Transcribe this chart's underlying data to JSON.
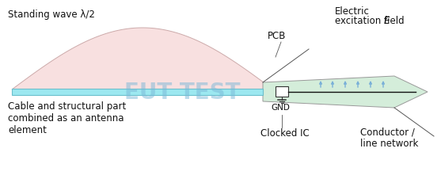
{
  "bg_color": "#ffffff",
  "label_standing_wave": "Standing wave λ/2",
  "label_electric_line1": "Electric",
  "label_electric_line2": "excitation field ",
  "label_electric_E": "E",
  "label_cable": "Cable and structural part\ncombined as an antenna\nelement",
  "label_pcb": "PCB",
  "label_gnd": "GND",
  "label_clocked_ic": "Clocked IC",
  "label_conductor": "Conductor /\nline network",
  "label_eut_test": "EUT TEST",
  "cable_color": "#9ce8f0",
  "cable_border_color": "#6bbfcc",
  "pcb_fill_color": "#d4edda",
  "pcb_border_color": "#999999",
  "wave_fill_color": "#f8e0e0",
  "wave_border_color": "#ccaaaa",
  "arrow_color": "#7ab0d8",
  "eut_test_color": "#7ab8d8",
  "text_color": "#111111",
  "line_color": "#555555",
  "ic_color": "#ffffff",
  "ic_border": "#333333",
  "figsize": [
    5.57,
    2.21
  ],
  "dpi": 100
}
